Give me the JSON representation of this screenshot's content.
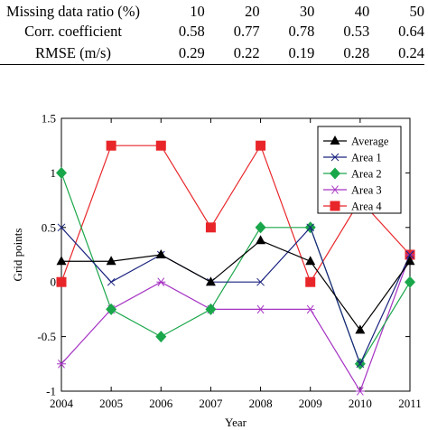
{
  "table": {
    "rows": [
      {
        "label": "Missing data ratio (%)",
        "values": [
          "10",
          "20",
          "30",
          "40",
          "50"
        ]
      },
      {
        "label": "Corr. coefficient",
        "values": [
          "0.58",
          "0.77",
          "0.78",
          "0.53",
          "0.64"
        ]
      },
      {
        "label": "RMSE (m/s)",
        "values": [
          "0.29",
          "0.22",
          "0.19",
          "0.28",
          "0.24"
        ]
      }
    ]
  },
  "chart_data": {
    "type": "line",
    "xlabel": "Year",
    "ylabel": "Grid points",
    "x": [
      2004,
      2005,
      2006,
      2007,
      2008,
      2009,
      2010,
      2011
    ],
    "xlim": [
      2004,
      2011
    ],
    "ylim": [
      -1,
      1.5
    ],
    "yticks": [
      -1,
      -0.5,
      0,
      0.5,
      1,
      1.5
    ],
    "ytick_labels": [
      "-1",
      "-0.5",
      "0",
      "0.5",
      "1",
      "1.5"
    ],
    "xtick_labels": [
      "2004",
      "2005",
      "2006",
      "2007",
      "2008",
      "2009",
      "2010",
      "2011"
    ],
    "grid": false,
    "legend_position": "top-right",
    "series": [
      {
        "name": "Average",
        "color": "#000000",
        "marker": "triangle",
        "values": [
          0.19,
          0.19,
          0.25,
          0.0,
          0.38,
          0.19,
          -0.44,
          0.19
        ]
      },
      {
        "name": "Area 1",
        "color": "#1a237e",
        "marker": "x",
        "values": [
          0.5,
          0.0,
          0.25,
          0.0,
          0.0,
          0.5,
          -0.75,
          0.25
        ]
      },
      {
        "name": "Area 2",
        "color": "#1aa64a",
        "marker": "diamond",
        "values": [
          1.0,
          -0.25,
          -0.5,
          -0.25,
          0.5,
          0.5,
          -0.75,
          0.0
        ]
      },
      {
        "name": "Area 3",
        "color": "#a633c4",
        "marker": "asterisk",
        "values": [
          -0.75,
          -0.25,
          0.0,
          -0.25,
          -0.25,
          -0.25,
          -1.0,
          0.25
        ]
      },
      {
        "name": "Area 4",
        "color": "#e8262a",
        "marker": "square",
        "values": [
          0.0,
          1.25,
          1.25,
          0.5,
          1.25,
          0.0,
          0.75,
          0.25
        ]
      }
    ]
  }
}
